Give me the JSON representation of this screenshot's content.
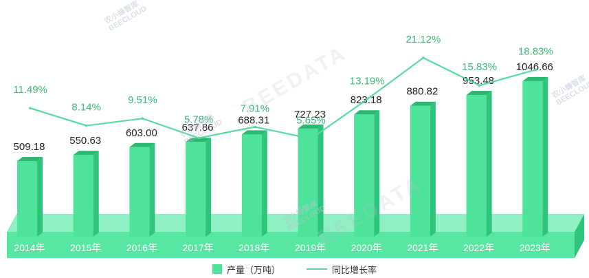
{
  "chart_data": {
    "type": "bar",
    "categories": [
      "2014年",
      "2015年",
      "2016年",
      "2017年",
      "2018年",
      "2019年",
      "2020年",
      "2021年",
      "2022年",
      "2023年"
    ],
    "series": [
      {
        "name": "产量（万吨）",
        "type": "bar",
        "values": [
          509.18,
          550.63,
          603.0,
          637.86,
          688.31,
          727.23,
          823.18,
          880.82,
          953.48,
          1046.66
        ],
        "labels": [
          "509.18",
          "550.63",
          "603.00",
          "637.86",
          "688.31",
          "727.23",
          "823.18",
          "880.82",
          "953.48",
          "1046.66"
        ]
      },
      {
        "name": "同比增长率",
        "type": "line",
        "values": [
          11.49,
          8.14,
          9.51,
          5.78,
          7.91,
          5.65,
          13.19,
          21.12,
          15.83,
          18.83
        ],
        "labels": [
          "11.49%",
          "8.14%",
          "9.51%",
          "5.78%",
          "7.91%",
          "5.65%",
          "13.19%",
          "21.12%",
          "15.83%",
          "18.83%"
        ]
      }
    ],
    "legend_position": "bottom-center",
    "grid": false,
    "colors": {
      "bar_front": "#4ee39a",
      "bar_side": "#2fc47c",
      "bar_top": "#2bb873",
      "base_front": "#57e7a2",
      "base_top": "#8ff0c3",
      "line": "#5ad9a2",
      "pct_label": "#3cb878",
      "value_label": "#222222"
    }
  },
  "legend": {
    "bar_label": "产量（万吨）",
    "line_label": "同比增长率"
  },
  "watermarks": {
    "brand_cn": "农小蜂智库",
    "brand_en": "BEECLOUD",
    "big": "BEEDATA"
  }
}
